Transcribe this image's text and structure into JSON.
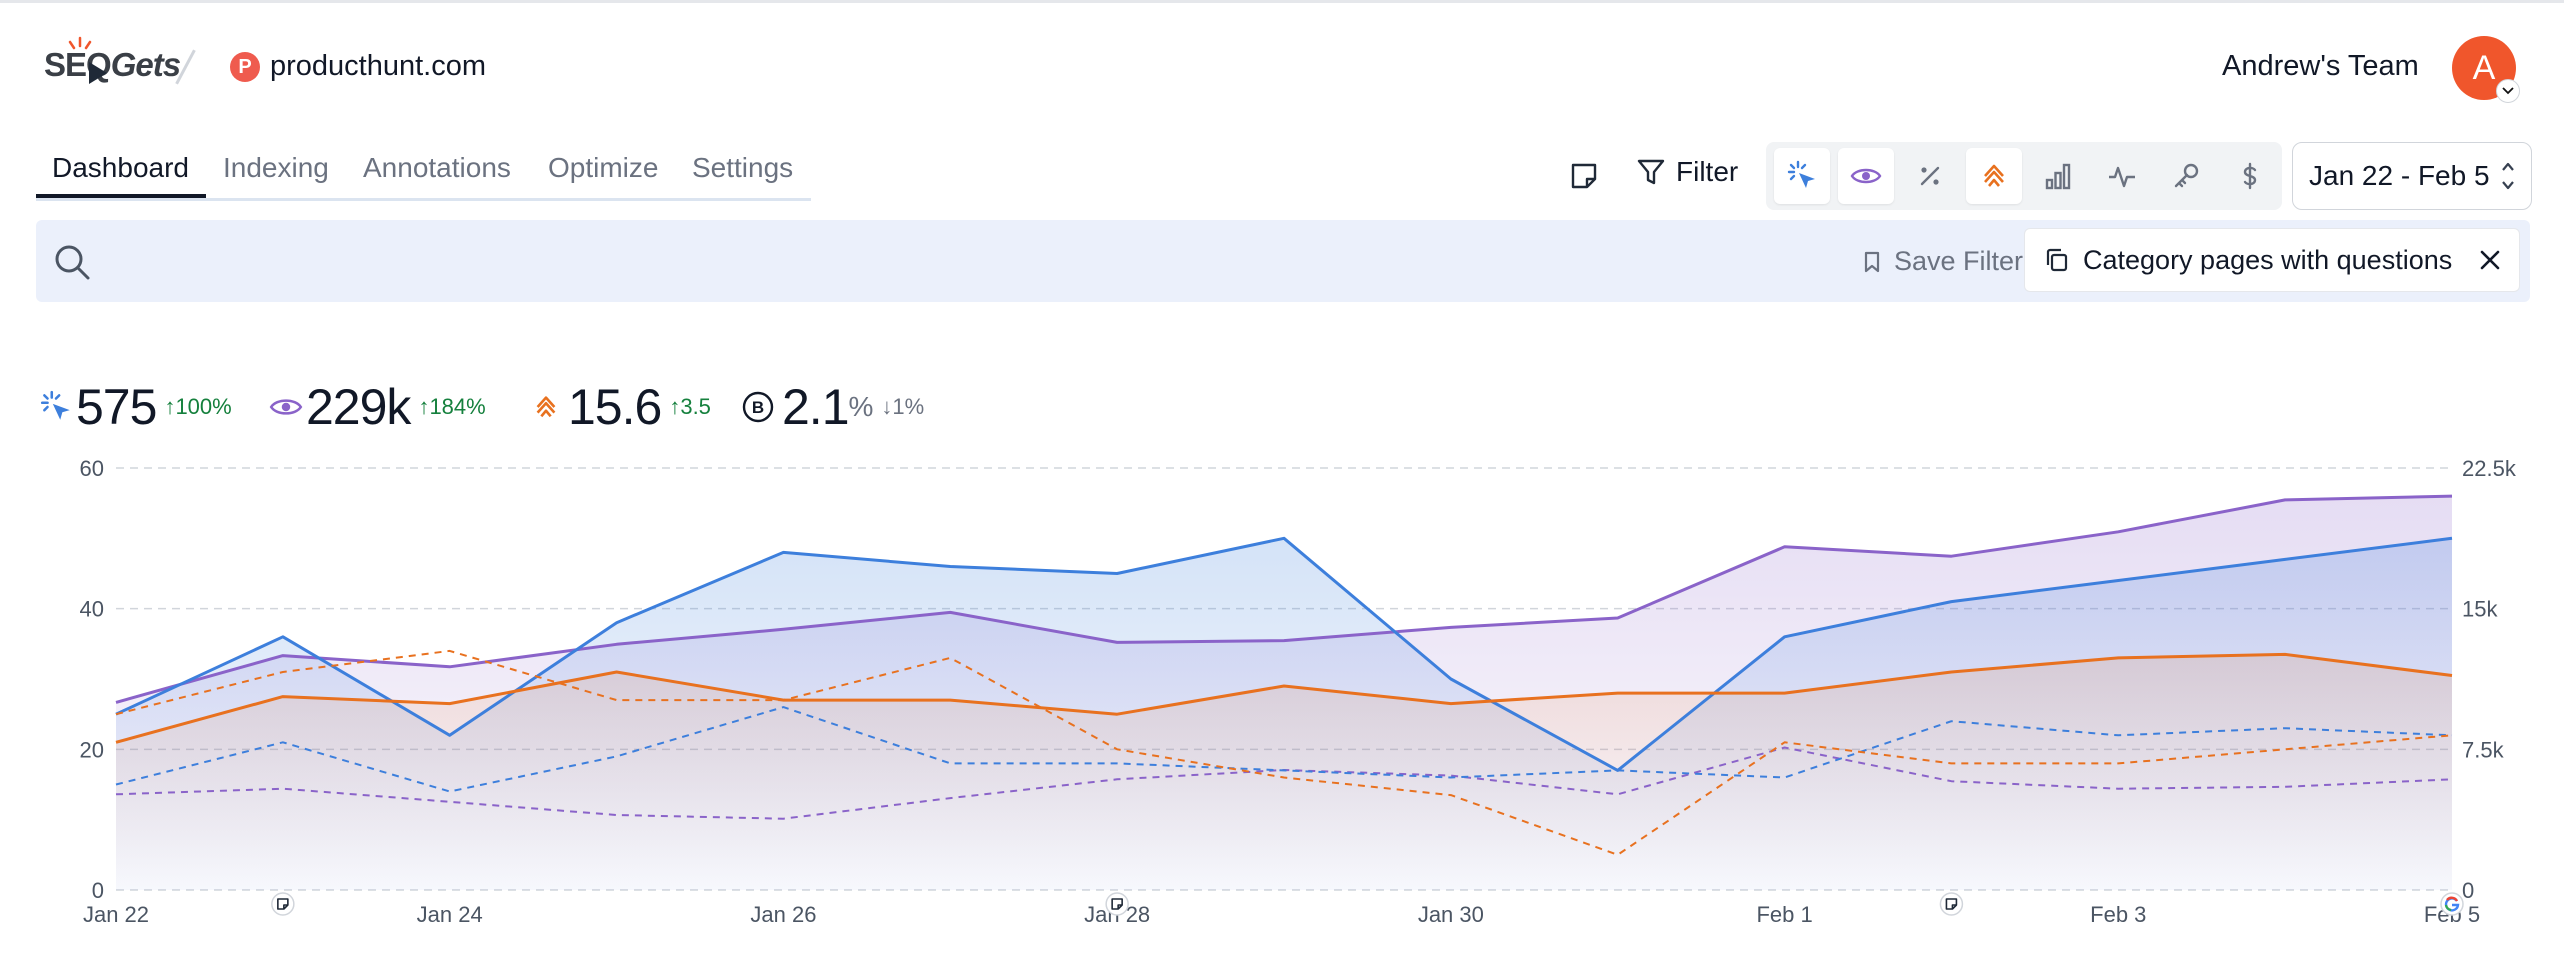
{
  "app": {
    "logo_text_a": "SE",
    "logo_text_q": "Q",
    "logo_text_b": "Gets",
    "site_initial": "P",
    "site_name": "producthunt.com",
    "team_name": "Andrew's Team",
    "avatar_initial": "A"
  },
  "tabs": [
    {
      "label": "Dashboard",
      "active": true
    },
    {
      "label": "Indexing"
    },
    {
      "label": "Annotations"
    },
    {
      "label": "Optimize"
    },
    {
      "label": "Settings"
    }
  ],
  "toolbar": {
    "filter_label": "Filter",
    "date_range": "Jan 22 - Feb 5",
    "metric_buttons": [
      {
        "icon": "clicks-icon",
        "active": true
      },
      {
        "icon": "eye-icon",
        "active": true
      },
      {
        "icon": "percent-icon",
        "active": false
      },
      {
        "icon": "position-chevron-icon",
        "active": true
      },
      {
        "icon": "bar-chart-icon",
        "active": false
      },
      {
        "icon": "pulse-icon",
        "active": false
      },
      {
        "icon": "key-icon",
        "active": false
      },
      {
        "icon": "dollar-icon",
        "active": false
      }
    ]
  },
  "search": {
    "placeholder": "",
    "save_filter_label": "Save Filter",
    "active_filter": "Category pages with questions"
  },
  "stats": {
    "clicks": {
      "value": "575",
      "delta": "100%"
    },
    "impressions": {
      "value": "229k",
      "delta": "184%"
    },
    "position": {
      "value": "15.6",
      "delta": "3.5"
    },
    "ctr": {
      "value": "2.1",
      "unit": "%",
      "delta": "1%"
    }
  },
  "colors": {
    "clicks": "#3d7fdc",
    "impressions": "#8a63c9",
    "position": "#e8711f",
    "accent_bg": "#ebf0fb"
  },
  "chart_data": {
    "type": "line",
    "x": [
      "Jan 22",
      "Jan 23",
      "Jan 24",
      "Jan 25",
      "Jan 26",
      "Jan 27",
      "Jan 28",
      "Jan 29",
      "Jan 30",
      "Jan 31",
      "Feb 1",
      "Feb 2",
      "Feb 3",
      "Feb 4",
      "Feb 5"
    ],
    "x_tick_labels": [
      "Jan 22",
      "Jan 24",
      "Jan 26",
      "Jan 28",
      "Jan 30",
      "Feb 1",
      "Feb 3",
      "Feb 5"
    ],
    "y_left_ticks": [
      "0",
      "20",
      "40",
      "60"
    ],
    "y_right_ticks": [
      "0",
      "7.5k",
      "15k",
      "22.5k"
    ],
    "ylim_left": [
      0,
      60
    ],
    "ylim_right": [
      0,
      22500
    ],
    "grid": true,
    "series": [
      {
        "key": "impressions",
        "axis": "right",
        "style": "solid",
        "fill": true,
        "values": [
          10000,
          12500,
          11900,
          13100,
          13900,
          14800,
          13200,
          13300,
          14000,
          14500,
          18300,
          17800,
          19100,
          20800,
          21000
        ]
      },
      {
        "key": "clicks",
        "axis": "left",
        "style": "solid",
        "fill": true,
        "values": [
          25,
          36,
          22,
          38,
          48,
          46,
          45,
          50,
          30,
          17,
          36,
          41,
          44,
          47,
          50
        ]
      },
      {
        "key": "position",
        "axis": "left",
        "style": "solid",
        "fill": true,
        "values": [
          21,
          27.5,
          26.5,
          31,
          27,
          27,
          25,
          29,
          26.5,
          28,
          28,
          31,
          33,
          33.5,
          30.5
        ]
      },
      {
        "key": "impressions_prev",
        "axis": "right",
        "style": "dashed",
        "values": [
          5100,
          5400,
          4700,
          4000,
          3800,
          4900,
          5900,
          6400,
          6100,
          5100,
          7600,
          5800,
          5400,
          5500,
          5900
        ]
      },
      {
        "key": "clicks_prev",
        "axis": "left",
        "style": "dashed",
        "values": [
          15,
          21,
          14,
          19,
          26,
          18,
          18,
          17,
          16,
          17,
          16,
          24,
          22,
          23,
          22
        ]
      },
      {
        "key": "position_prev",
        "axis": "left",
        "style": "dashed",
        "values": [
          25,
          31,
          34,
          27,
          27,
          33,
          20,
          16,
          13.5,
          5,
          21,
          18,
          18,
          20,
          22
        ]
      }
    ],
    "annotation_markers_at": [
      "Jan 23",
      "Jan 28",
      "Feb 2"
    ],
    "google_update_marker_at": "Feb 5"
  }
}
